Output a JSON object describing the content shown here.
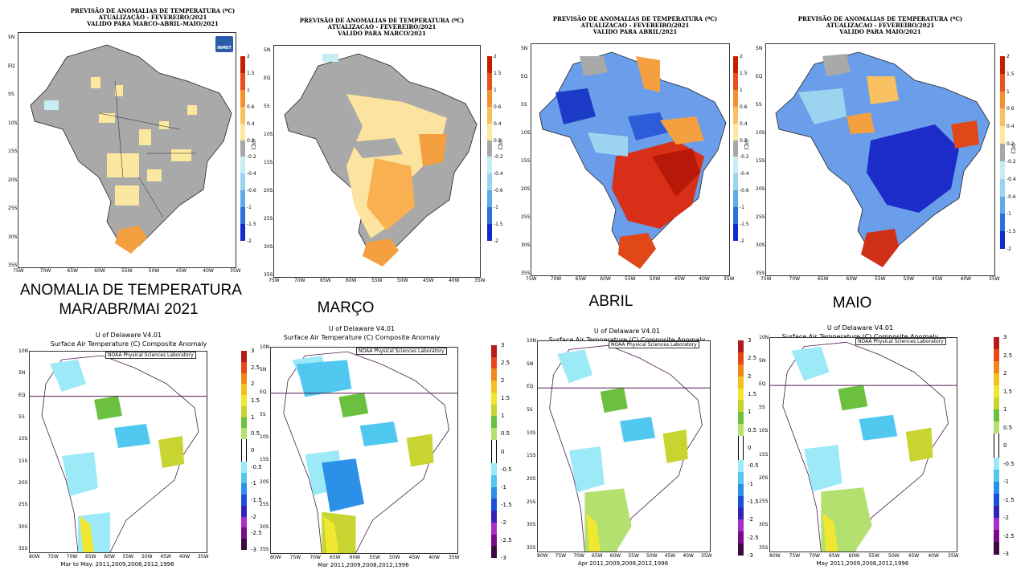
{
  "top_maps": [
    {
      "title": [
        "PREVISÃO DE ANOMALIAS DE TEMPERATURA (ºC)",
        "ATUALIZAÇÃO - FEVEREIRO/2021",
        "VALIDO PARA MARCO-ABRIL-MAIO/2021"
      ],
      "logo": "INMET"
    },
    {
      "title": [
        "PREVISÃO DE ANOMALIAS DE TEMPERATURA (ºC)",
        "ATUALIZACAO - FEVEREIRO/2021",
        "VALIDO PARA MARCO/2021"
      ]
    },
    {
      "title": [
        "PREVISÃO DE ANOMALIAS DE TEMPERATURA (ºC)",
        "ATUALIZACAO - FEVEREIRO/2021",
        "VALIDO PARA ABRIL/2021"
      ]
    },
    {
      "title": [
        "PREVISÃO DE ANOMALIAS DE TEMPERATURA (ºC)",
        "ATUALIZACAO - FEVEREIRO/2021",
        "VALIDO PARA MAIO/2021"
      ]
    }
  ],
  "top_lat_ticks": [
    "5N",
    "EQ",
    "5S",
    "10S",
    "15S",
    "20S",
    "25S",
    "30S",
    "35S"
  ],
  "top_lon_ticks": [
    "75W",
    "70W",
    "65W",
    "60W",
    "55W",
    "50W",
    "45W",
    "40W",
    "35W"
  ],
  "top_colorbar": {
    "labels": [
      "2",
      "1.5",
      "1",
      "0.6",
      "0.4",
      "0.2",
      "-0.2",
      "-0.4",
      "-0.6",
      "-1",
      "-1.5",
      "-2"
    ],
    "unit": "(ºC)",
    "colors": [
      "#c81e00",
      "#e8501c",
      "#f4902c",
      "#f8c060",
      "#fce8a0",
      "#a8a8a8",
      "#c8ecf4",
      "#9cd4f0",
      "#5cacec",
      "#2c70dc",
      "#0c2ccc"
    ]
  },
  "captions": {
    "seasonal": [
      "ANOMALIA DE TEMPERATURA",
      "MAR/ABR/MAI  2021"
    ],
    "march": "MARÇO",
    "april": "ABRIL",
    "may": "MAIO"
  },
  "bottom_maps": [
    {
      "title": [
        "U of Delaware V4.01",
        "Surface Air Temperature (C) Composite Anomaly"
      ],
      "footer": "Mar to May: 2011,2009,2008,2012,1996",
      "credit": "NOAA Physical Sciences Laboratory",
      "colorbar": [
        "3",
        "2.5",
        "2",
        "1.5",
        "1",
        "0.5",
        "0",
        "-0.5",
        "-1",
        "-1.5",
        "-2",
        "-2.5",
        "-3"
      ]
    },
    {
      "title": [
        "U of Delaware V4.01",
        "Surface Air Temperature (C) Composite Anomaly"
      ],
      "footer": "Mar 2011,2009,2008,2012,1996",
      "credit": "NOAA Physical Sciences Laboratory",
      "colorbar": [
        "3",
        "2.5",
        "2",
        "1.5",
        "1",
        "0.5",
        "0",
        "-0.5",
        "-1",
        "-1.5",
        "-2",
        "-2.5",
        "-3"
      ]
    },
    {
      "title": [
        "U of Delaware V4.01",
        "Surface Air Temperature (C) Composite Anomaly"
      ],
      "footer": "Apr 2011,2009,2008,2012,1996",
      "credit": "NOAA Physical Sciences Laboratory",
      "colorbar": [
        "3",
        "2.5",
        "2",
        "1.5",
        "1",
        "0.5",
        "0",
        "-0.5",
        "-1",
        "-1.5",
        "-2",
        "-2.5",
        "-3"
      ]
    },
    {
      "title": [
        "U of Delaware V4.01",
        "Surface Air Temperature (C) Composite Anomaly"
      ],
      "footer": "May 2011,2009,2008,2012,1996",
      "credit": "NOAA Physical Sciences Laboratory",
      "colorbar": [
        "3",
        "2.5",
        "2",
        "1.5",
        "1",
        "0.5",
        "0",
        "-0.5",
        "-1",
        "-1.5",
        "-2",
        "-2.5",
        "-3"
      ]
    }
  ],
  "bottom_lat_ticks": [
    "10N",
    "5N",
    "EQ",
    "5S",
    "10S",
    "15S",
    "20S",
    "25S",
    "30S",
    "35S"
  ],
  "bottom_lon_ticks": [
    "80W",
    "75W",
    "70W",
    "65W",
    "60W",
    "55W",
    "50W",
    "45W",
    "40W",
    "35W"
  ],
  "bottom_colorbar_colors": [
    "#3c0a3c",
    "#7a0a8a",
    "#a830c8",
    "#3424b4",
    "#1c50d8",
    "#2c90e8",
    "#50c8f0",
    "#9ceaf8",
    "#ffffff",
    "#ffffff",
    "#b4e070",
    "#6cc040",
    "#c8d430",
    "#f0e830",
    "#f4c020",
    "#f08818",
    "#e84818",
    "#b41c1c"
  ],
  "chart_data": [
    {
      "type": "heatmap",
      "title": "PREVISÃO DE ANOMALIAS DE TEMPERATURA (ºC) - VALIDO PARA MARCO-ABRIL-MAIO/2021",
      "colorbar_range": [
        -2,
        2
      ],
      "dominant_classes": [
        "-0.2 to 0.2",
        "0.2 to 0.4",
        "0.4 to 0.6"
      ]
    },
    {
      "type": "heatmap",
      "title": "PREVISÃO DE ANOMALIAS DE TEMPERATURA (ºC) - VALIDO PARA MARCO/2021",
      "colorbar_range": [
        -2,
        2
      ],
      "dominant_classes": [
        "-0.2 to 0.2",
        "0.2 to 0.4",
        "0.6 to 1"
      ]
    },
    {
      "type": "heatmap",
      "title": "PREVISÃO DE ANOMALIAS DE TEMPERATURA (ºC) - VALIDO PARA ABRIL/2021",
      "colorbar_range": [
        -2,
        2
      ],
      "dominant_classes": [
        "-1.5 to -0.6",
        "1 to 2"
      ]
    },
    {
      "type": "heatmap",
      "title": "PREVISÃO DE ANOMALIAS DE TEMPERATURA (ºC) - VALIDO PARA MAIO/2021",
      "colorbar_range": [
        -2,
        2
      ],
      "dominant_classes": [
        "-2 to -0.6",
        "1 to 2"
      ]
    },
    {
      "type": "heatmap",
      "title": "Surface Air Temperature (C) Composite Anomaly - Mar to May",
      "colorbar_range": [
        -3,
        3
      ]
    },
    {
      "type": "heatmap",
      "title": "Surface Air Temperature (C) Composite Anomaly - Mar",
      "colorbar_range": [
        -3,
        3
      ]
    },
    {
      "type": "heatmap",
      "title": "Surface Air Temperature (C) Composite Anomaly - Apr",
      "colorbar_range": [
        -3,
        3
      ]
    },
    {
      "type": "heatmap",
      "title": "Surface Air Temperature (C) Composite Anomaly - May",
      "colorbar_range": [
        -3,
        3
      ]
    }
  ]
}
